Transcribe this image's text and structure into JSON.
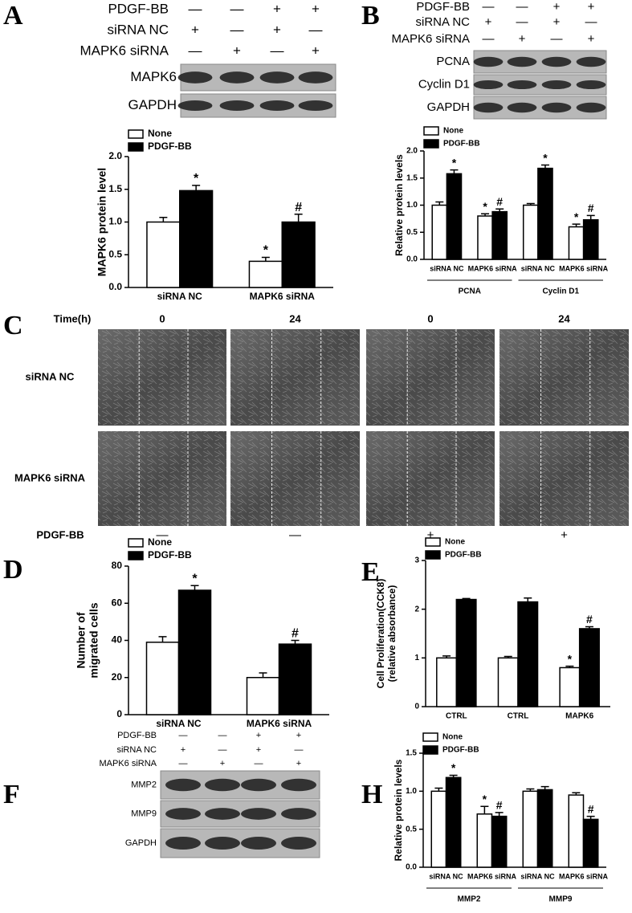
{
  "panel_labels": [
    "A",
    "B",
    "C",
    "D",
    "E",
    "F",
    "H"
  ],
  "blots": [
    {
      "rows": [
        {
          "label": "PDGF-BB",
          "signs": [
            "—",
            "—",
            "+",
            "+"
          ]
        },
        {
          "label": "siRNA NC",
          "signs": [
            "+",
            "—",
            "+",
            "—"
          ]
        },
        {
          "label": "MAPK6 siRNA",
          "signs": [
            "—",
            "+",
            "—",
            "+"
          ]
        }
      ],
      "bands": [
        "MAPK6",
        "GAPDH"
      ]
    },
    {
      "rows": [
        {
          "label": "PDGF-BB",
          "signs": [
            "—",
            "—",
            "+",
            "+"
          ]
        },
        {
          "label": "siRNA NC",
          "signs": [
            "+",
            "—",
            "+",
            "—"
          ]
        },
        {
          "label": "MAPK6 siRNA",
          "signs": [
            "—",
            "+",
            "—",
            "+"
          ]
        }
      ],
      "bands": [
        "PCNA",
        "Cyclin D1",
        "GAPDH"
      ]
    },
    {
      "rows": [
        {
          "label": "PDGF-BB",
          "signs": [
            "—",
            "—",
            "+",
            "+"
          ]
        },
        {
          "label": "siRNA NC",
          "signs": [
            "+",
            "—",
            "+",
            "—"
          ]
        },
        {
          "label": "MAPK6 siRNA",
          "signs": [
            "—",
            "+",
            "—",
            "+"
          ]
        }
      ],
      "bands": [
        "MMP2",
        "MMP9",
        "GAPDH"
      ]
    }
  ],
  "wound": {
    "time_label": "Time(h)",
    "times": [
      "0",
      "24",
      "0",
      "24"
    ],
    "rows": [
      "siRNA NC",
      "MAPK6 siRNA"
    ],
    "treatment_label": "PDGF-BB",
    "treatment": [
      "—",
      "—",
      "+",
      "+"
    ]
  },
  "chart_data": [
    {
      "type": "bar",
      "ylabel": [
        "MAPK6 protein level"
      ],
      "categories": [
        "siRNA NC",
        "MAPK6 siRNA"
      ],
      "series": [
        {
          "name": "None",
          "color": "#ffffff",
          "values": [
            1.0,
            0.4
          ],
          "errors": [
            0.07,
            0.06
          ],
          "markers": [
            null,
            "*"
          ]
        },
        {
          "name": "PDGF-BB",
          "color": "#000000",
          "values": [
            1.48,
            1.0
          ],
          "errors": [
            0.08,
            0.12
          ],
          "markers": [
            "*",
            "#"
          ]
        }
      ],
      "ylim": [
        0,
        2.0
      ],
      "yticks": [
        {
          "value": 0,
          "label": "0.0"
        },
        0.5,
        {
          "value": 1,
          "label": "1.0"
        },
        1.5,
        {
          "value": 2,
          "label": "2.0"
        }
      ]
    },
    {
      "type": "bar",
      "ylabel": [
        "Relative protein levels"
      ],
      "categories": [
        "siRNA NC",
        "MAPK6 siRNA",
        "siRNA NC",
        "MAPK6 siRNA"
      ],
      "groups": [
        "PCNA",
        "Cyclin D1"
      ],
      "series": [
        {
          "name": "None",
          "color": "#ffffff",
          "values": [
            1.0,
            0.8,
            1.0,
            0.6
          ],
          "errors": [
            0.06,
            0.04,
            0.03,
            0.05
          ],
          "markers": [
            null,
            "*",
            null,
            "*"
          ]
        },
        {
          "name": "PDGF-BB",
          "color": "#000000",
          "values": [
            1.58,
            0.88,
            1.68,
            0.73
          ],
          "errors": [
            0.07,
            0.05,
            0.06,
            0.08
          ],
          "markers": [
            "*",
            "#",
            "*",
            "#"
          ]
        }
      ],
      "ylim": [
        0,
        2.0
      ],
      "yticks": [
        {
          "value": 0,
          "label": "0.0"
        },
        0.5,
        {
          "value": 1,
          "label": "1.0"
        },
        1.5,
        {
          "value": 2,
          "label": "2.0"
        }
      ]
    },
    {
      "type": "bar",
      "ylabel": [
        "Number of",
        "migrated cells"
      ],
      "categories": [
        "siRNA NC",
        "MAPK6 siRNA"
      ],
      "series": [
        {
          "name": "None",
          "color": "#ffffff",
          "values": [
            39,
            20
          ],
          "errors": [
            3,
            2.5
          ],
          "markers": [
            null,
            null
          ]
        },
        {
          "name": "PDGF-BB",
          "color": "#000000",
          "values": [
            67,
            38
          ],
          "errors": [
            2.5,
            2
          ],
          "markers": [
            "*",
            "#"
          ]
        }
      ],
      "ylim": [
        0,
        80
      ],
      "yticks": [
        0,
        20,
        40,
        60,
        80
      ]
    },
    {
      "type": "bar",
      "ylabel": [
        "Cell Proliferation(CCK8)",
        "(relative absorbance)"
      ],
      "categories": [
        "CTRL",
        "CTRL",
        "MAPK6"
      ],
      "series": [
        {
          "name": "None",
          "color": "#ffffff",
          "values": [
            1.0,
            1.0,
            0.8
          ],
          "errors": [
            0.04,
            0.03,
            0.03
          ],
          "markers": [
            null,
            null,
            "*"
          ]
        },
        {
          "name": "PDGF-BB",
          "color": "#000000",
          "values": [
            2.2,
            2.15,
            1.6
          ],
          "errors": [
            0.02,
            0.08,
            0.04
          ],
          "markers": [
            null,
            null,
            "#"
          ]
        }
      ],
      "ylim": [
        0,
        3
      ],
      "yticks": [
        0,
        1,
        2,
        3
      ]
    },
    {
      "type": "bar",
      "ylabel": [
        "Relative protein levels"
      ],
      "categories": [
        "siRNA NC",
        "MAPK6 siRNA",
        "siRNA NC",
        "MAPK6 siRNA"
      ],
      "groups": [
        "MMP2",
        "MMP9"
      ],
      "series": [
        {
          "name": "None",
          "color": "#ffffff",
          "values": [
            1.0,
            0.7,
            1.0,
            0.95
          ],
          "errors": [
            0.04,
            0.1,
            0.03,
            0.03
          ],
          "markers": [
            null,
            "*",
            null,
            null
          ]
        },
        {
          "name": "PDGF-BB",
          "color": "#000000",
          "values": [
            1.18,
            0.67,
            1.02,
            0.63
          ],
          "errors": [
            0.03,
            0.05,
            0.04,
            0.04
          ],
          "markers": [
            "*",
            "#",
            null,
            "#"
          ]
        }
      ],
      "ylim": [
        0,
        1.5
      ],
      "yticks": [
        {
          "value": 0,
          "label": "0.0"
        },
        0.5,
        {
          "value": 1,
          "label": "1.0"
        },
        1.5
      ]
    }
  ]
}
